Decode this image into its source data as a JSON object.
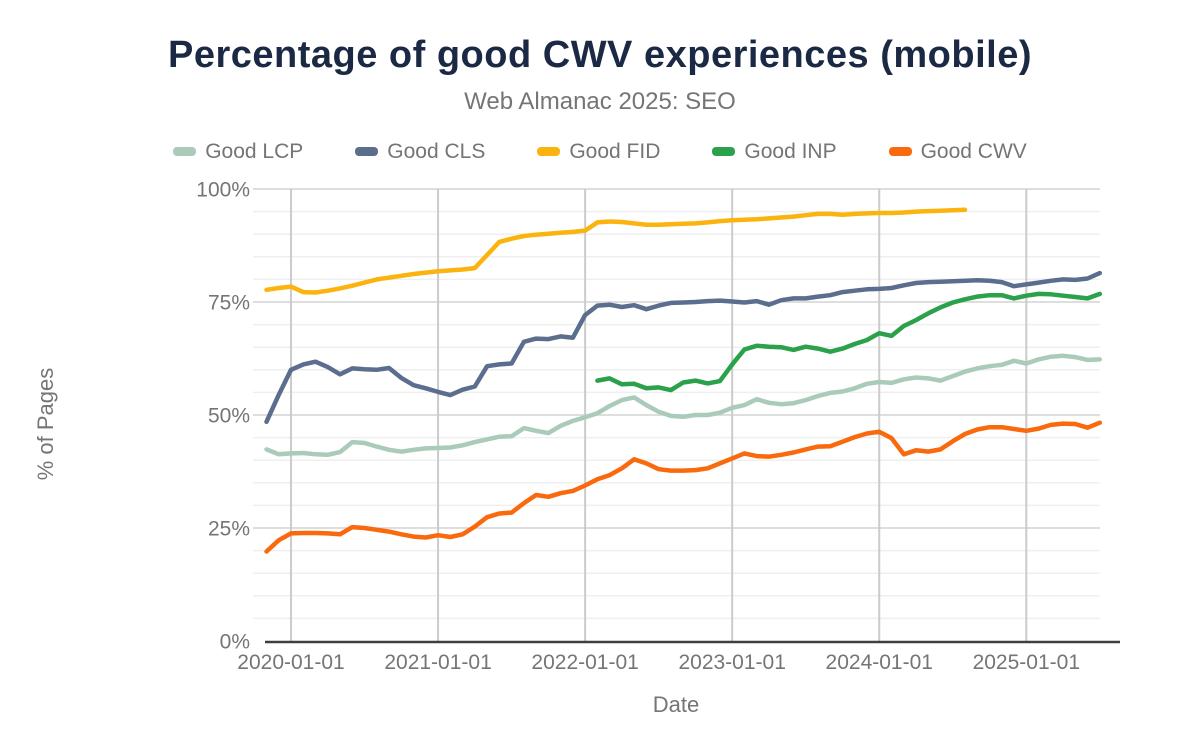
{
  "header": {
    "title": "Percentage of good CWV experiences (mobile)",
    "subtitle": "Web Almanac 2025: SEO"
  },
  "colors": {
    "title_text": "#1b2944",
    "muted_text": "#757575",
    "axis_line": "#3f3f3f",
    "major_grid": "#d4d4d4",
    "minor_grid": "#efefef",
    "year_grid": "#cbcbcb"
  },
  "chart_data": {
    "type": "line",
    "title": "Percentage of good CWV experiences (mobile)",
    "subtitle": "Web Almanac 2025: SEO",
    "unit": "%",
    "x_start_month": "2019-11",
    "x_end_month": "2025-07",
    "x_interval": "month",
    "legend_position": "top",
    "grid": true,
    "y_axis": {
      "label": "% of Pages",
      "min": 0,
      "max": 100,
      "major_step": 25,
      "minor_step": 5,
      "ticks": [
        {
          "value": 0,
          "label": "0%"
        },
        {
          "value": 25,
          "label": "25%"
        },
        {
          "value": 50,
          "label": "50%"
        },
        {
          "value": 75,
          "label": "75%"
        },
        {
          "value": 100,
          "label": "100%"
        }
      ]
    },
    "x_axis": {
      "label": "Date",
      "ticks": [
        {
          "month_index": 2,
          "label": "2020-01-01"
        },
        {
          "month_index": 14,
          "label": "2021-01-01"
        },
        {
          "month_index": 26,
          "label": "2022-01-01"
        },
        {
          "month_index": 38,
          "label": "2023-01-01"
        },
        {
          "month_index": 50,
          "label": "2024-01-01"
        },
        {
          "month_index": 62,
          "label": "2025-01-01"
        }
      ]
    },
    "series": [
      {
        "name": "Good LCP",
        "color": "#aacbb9",
        "start_month": "2019-11",
        "start_index": 0,
        "values": [
          42.4,
          41.3,
          41.5,
          41.6,
          41.3,
          41.2,
          41.8,
          44.0,
          43.8,
          43.0,
          42.3,
          41.9,
          42.3,
          42.6,
          42.7,
          42.8,
          43.3,
          44.0,
          44.6,
          45.2,
          45.3,
          47.1,
          46.5,
          46.0,
          47.6,
          48.7,
          49.5,
          50.4,
          52.0,
          53.3,
          53.9,
          52.2,
          50.7,
          49.8,
          49.6,
          50.0,
          50.0,
          50.5,
          51.6,
          52.2,
          53.5,
          52.7,
          52.4,
          52.6,
          53.3,
          54.2,
          54.9,
          55.2,
          55.9,
          56.9,
          57.3,
          57.1,
          57.9,
          58.3,
          58.1,
          57.6,
          58.6,
          59.6,
          60.3,
          60.8,
          61.1,
          62.0,
          61.4,
          62.3,
          62.9,
          63.1,
          62.8,
          62.2,
          62.3
        ]
      },
      {
        "name": "Good CLS",
        "color": "#5b6e8e",
        "start_month": "2019-11",
        "start_index": 0,
        "values": [
          48.5,
          54.5,
          60.0,
          61.2,
          61.8,
          60.6,
          59.0,
          60.3,
          60.1,
          60.0,
          60.4,
          58.2,
          56.6,
          55.9,
          55.1,
          54.4,
          55.6,
          56.3,
          60.8,
          61.2,
          61.4,
          66.2,
          66.9,
          66.8,
          67.4,
          67.1,
          72.1,
          74.2,
          74.4,
          73.9,
          74.3,
          73.4,
          74.2,
          74.8,
          74.9,
          75.0,
          75.2,
          75.3,
          75.1,
          74.9,
          75.2,
          74.4,
          75.4,
          75.8,
          75.8,
          76.2,
          76.5,
          77.2,
          77.5,
          77.8,
          77.9,
          78.1,
          78.7,
          79.2,
          79.4,
          79.5,
          79.6,
          79.7,
          79.8,
          79.7,
          79.4,
          78.5,
          78.9,
          79.3,
          79.7,
          80.0,
          79.9,
          80.2,
          81.4
        ]
      },
      {
        "name": "Good FID",
        "color": "#fbb40f",
        "start_month": "2019-11",
        "start_index": 0,
        "values": [
          77.7,
          78.1,
          78.4,
          77.2,
          77.1,
          77.5,
          78.0,
          78.6,
          79.3,
          80.0,
          80.4,
          80.8,
          81.2,
          81.5,
          81.8,
          82.0,
          82.2,
          82.5,
          85.4,
          88.3,
          89.0,
          89.6,
          89.9,
          90.1,
          90.3,
          90.5,
          90.8,
          92.6,
          92.8,
          92.7,
          92.4,
          92.1,
          92.1,
          92.2,
          92.3,
          92.4,
          92.6,
          92.9,
          93.1,
          93.2,
          93.3,
          93.5,
          93.7,
          93.9,
          94.2,
          94.5,
          94.5,
          94.3,
          94.5,
          94.6,
          94.7,
          94.7,
          94.8,
          95.0,
          95.1,
          95.2,
          95.3,
          95.4
        ]
      },
      {
        "name": "Good INP",
        "color": "#2aa14a",
        "start_month": "2022-02",
        "start_index": 27,
        "values": [
          57.6,
          58.1,
          56.8,
          56.9,
          55.9,
          56.1,
          55.5,
          57.2,
          57.6,
          57.0,
          57.5,
          61.2,
          64.5,
          65.3,
          65.1,
          65.0,
          64.4,
          65.1,
          64.7,
          64.0,
          64.7,
          65.7,
          66.6,
          68.1,
          67.5,
          69.7,
          71.0,
          72.5,
          73.8,
          74.9,
          75.6,
          76.2,
          76.5,
          76.5,
          75.8,
          76.4,
          76.8,
          76.7,
          76.4,
          76.1,
          75.8,
          76.8
        ]
      },
      {
        "name": "Good CWV",
        "color": "#f9690e",
        "start_month": "2019-11",
        "start_index": 0,
        "values": [
          19.8,
          22.3,
          23.8,
          23.9,
          23.9,
          23.8,
          23.6,
          25.2,
          25.0,
          24.6,
          24.2,
          23.6,
          23.1,
          22.9,
          23.4,
          23.0,
          23.6,
          25.3,
          27.4,
          28.2,
          28.4,
          30.5,
          32.3,
          31.9,
          32.7,
          33.2,
          34.4,
          35.8,
          36.7,
          38.2,
          40.2,
          39.3,
          38.0,
          37.7,
          37.7,
          37.8,
          38.2,
          39.3,
          40.4,
          41.5,
          40.9,
          40.8,
          41.2,
          41.7,
          42.4,
          43.0,
          43.1,
          44.1,
          45.1,
          45.9,
          46.3,
          44.9,
          41.3,
          42.2,
          41.9,
          42.4,
          44.2,
          45.8,
          46.8,
          47.3,
          47.3,
          46.9,
          46.5,
          47.0,
          47.8,
          48.1,
          48.0,
          47.2,
          48.3
        ]
      }
    ]
  }
}
